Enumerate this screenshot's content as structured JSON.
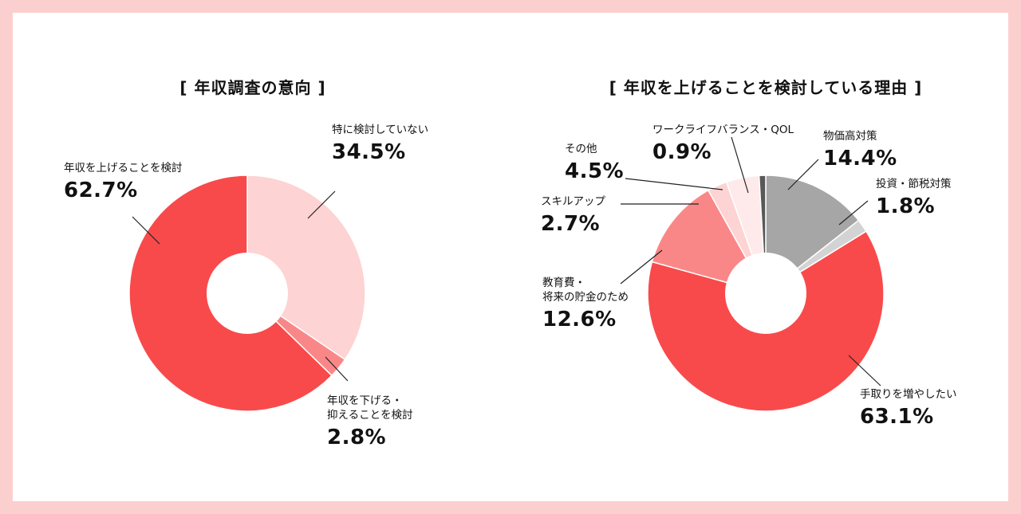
{
  "chart_data": [
    {
      "type": "pie",
      "title": "[ 年収調査の意向 ]",
      "slices": [
        {
          "label": "特に検討していない",
          "value": 34.5,
          "value_label": "34.5%",
          "color": "#fdd3d4"
        },
        {
          "label": "年収を下げる・\n抑えることを検討",
          "value": 2.8,
          "value_label": "2.8%",
          "color": "#fa8787"
        },
        {
          "label": "年収を上げることを検討",
          "value": 62.7,
          "value_label": "62.7%",
          "color": "#f84a4b"
        }
      ]
    },
    {
      "type": "pie",
      "title": "[ 年収を上げることを検討している理由 ]",
      "slices": [
        {
          "label": "物価高対策",
          "value": 14.4,
          "value_label": "14.4%",
          "color": "#a6a6a6"
        },
        {
          "label": "投資・節税対策",
          "value": 1.8,
          "value_label": "1.8%",
          "color": "#d3d3d3"
        },
        {
          "label": "手取りを増やしたい",
          "value": 63.1,
          "value_label": "63.1%",
          "color": "#f84a4b"
        },
        {
          "label": "教育費・\n将来の貯金のため",
          "value": 12.6,
          "value_label": "12.6%",
          "color": "#fa8787"
        },
        {
          "label": "スキルアップ",
          "value": 2.7,
          "value_label": "2.7%",
          "color": "#fdd3d4"
        },
        {
          "label": "その他",
          "value": 4.5,
          "value_label": "4.5%",
          "color": "#feeaea"
        },
        {
          "label": "ワークライフバランス・QOL",
          "value": 0.9,
          "value_label": "0.9%",
          "color": "#585858"
        }
      ]
    }
  ]
}
